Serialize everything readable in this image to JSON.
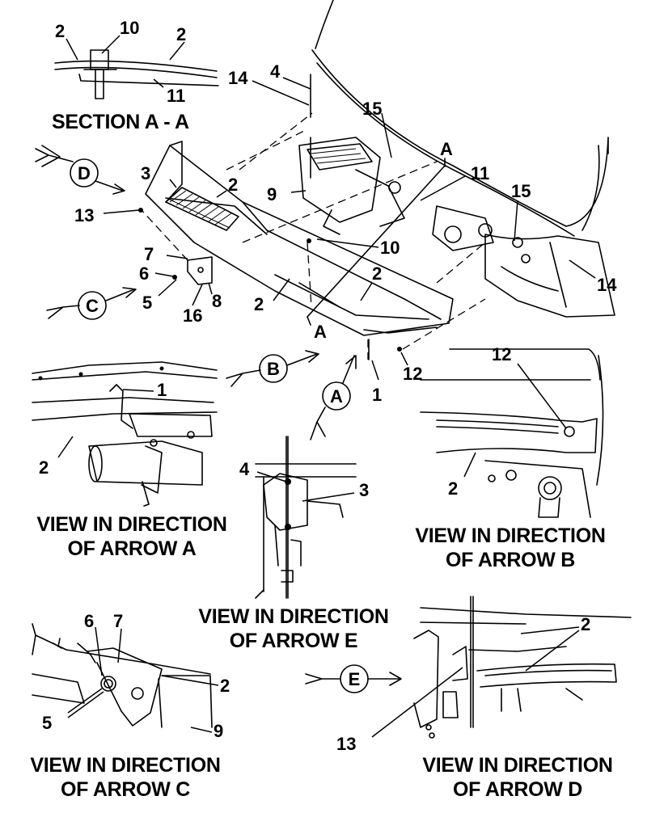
{
  "captions": {
    "section": "SECTION A - A",
    "view_a": [
      "VIEW IN DIRECTION",
      "OF ARROW A"
    ],
    "view_b": [
      "VIEW IN DIRECTION",
      "OF ARROW B"
    ],
    "view_c": [
      "VIEW IN DIRECTION",
      "OF ARROW C"
    ],
    "view_d": [
      "VIEW IN DIRECTION",
      "OF ARROW D"
    ],
    "view_e": [
      "VIEW IN DIRECTION",
      "OF ARROW E"
    ]
  },
  "arrows": {
    "a": "A",
    "b": "B",
    "c": "C",
    "d": "D",
    "e": "E",
    "section_mark": "A"
  },
  "callouts": {
    "sec_2a": "2",
    "sec_10": "10",
    "sec_2b": "2",
    "sec_11": "11",
    "m_14a": "14",
    "m_4": "4",
    "m_15a": "15",
    "m_a": "A",
    "m_11": "11",
    "m_3": "3",
    "m_2a": "2",
    "m_9": "9",
    "m_13": "13",
    "m_15b": "15",
    "m_10": "10",
    "m_7": "7",
    "m_6": "6",
    "m_5": "5",
    "m_16": "16",
    "m_8": "8",
    "m_2b": "2",
    "m_2c": "2",
    "m_14b": "14",
    "m_12": "12",
    "m_1": "1",
    "m_a2": "A",
    "va_1": "1",
    "va_2": "2",
    "vb_12": "12",
    "vb_2": "2",
    "ve_4": "4",
    "ve_3": "3",
    "vc_6": "6",
    "vc_7": "7",
    "vc_2": "2",
    "vc_5": "5",
    "vc_9": "9",
    "vd_2": "2",
    "vd_13": "13"
  }
}
